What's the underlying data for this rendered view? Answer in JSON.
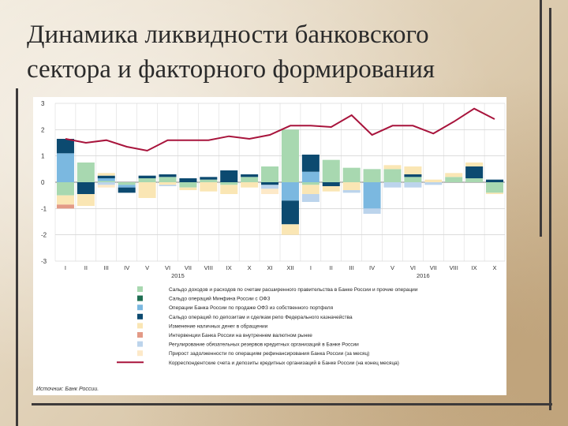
{
  "title_lines": [
    "Динамика ликвидности банковского",
    "сектора и факторного формирования"
  ],
  "colors": {
    "budget": "#a8d8b0",
    "minfin": "#1f6e52",
    "ofz_sale": "#7bb8e0",
    "treasury": "#0c4a70",
    "cash": "#fae6b4",
    "fx": "#e39a86",
    "reserves": "#bcd4ec",
    "refinancing": "#fde9c8",
    "correspondent": "#a8143c"
  },
  "chart_data": {
    "type": "bar",
    "subtype": "stacked-bar-with-line",
    "categories": [
      "I",
      "II",
      "III",
      "IV",
      "V",
      "VI",
      "VII",
      "VIII",
      "IX",
      "X",
      "XI",
      "XII",
      "I",
      "II",
      "III",
      "IV",
      "V",
      "VI",
      "VII",
      "VIII",
      "IX",
      "X"
    ],
    "year_labels": [
      {
        "label": "2015",
        "at": 5.5
      },
      {
        "label": "2016",
        "at": 17.5
      }
    ],
    "ylim": [
      -3,
      3
    ],
    "yticks": [
      -3,
      -2,
      -1,
      0,
      1,
      2,
      3
    ],
    "grid": true,
    "series": [
      {
        "name": "Сальдо доходов и расходов по счетам расширенного правительства в Банке России и прочие операции",
        "color_key": "budget",
        "values": [
          -0.5,
          0.75,
          0.05,
          -0.1,
          0.15,
          0.2,
          -0.2,
          0.1,
          -0.1,
          0.2,
          0.6,
          2.0,
          -0.1,
          0.85,
          0.55,
          0.5,
          0.5,
          0.2,
          0.0,
          0.2,
          0.15,
          -0.4
        ]
      },
      {
        "name": "Сальдо операций Минфина России с ОФЗ",
        "color_key": "minfin",
        "values": [
          0.0,
          0.0,
          0.0,
          0.0,
          0.0,
          0.0,
          0.0,
          0.0,
          0.0,
          0.0,
          0.0,
          0.0,
          0.0,
          0.0,
          0.0,
          0.0,
          0.0,
          0.0,
          0.0,
          0.0,
          0.0,
          0.0
        ]
      },
      {
        "name": "Операции Банка России по продаже ОФЗ из собственного портфеля",
        "color_key": "ofz_sale",
        "values": [
          1.1,
          0.0,
          0.1,
          -0.1,
          0.0,
          0.0,
          0.0,
          0.0,
          0.0,
          0.0,
          0.0,
          -0.7,
          0.4,
          0.0,
          0.0,
          -1.0,
          0.0,
          0.0,
          0.0,
          0.0,
          0.0,
          0.0
        ]
      },
      {
        "name": "Сальдо операций по депозитам и сделкам репо Федерального казначейства",
        "color_key": "treasury",
        "values": [
          0.55,
          -0.45,
          0.1,
          -0.2,
          0.1,
          0.1,
          0.15,
          0.1,
          0.45,
          0.1,
          -0.1,
          -0.9,
          0.65,
          -0.15,
          0.0,
          0.0,
          0.0,
          0.1,
          0.0,
          0.0,
          0.45,
          0.1
        ]
      },
      {
        "name": "Изменение наличных денег в обращении",
        "color_key": "cash",
        "values": [
          -0.35,
          -0.45,
          0.1,
          0.0,
          -0.6,
          -0.1,
          -0.1,
          -0.35,
          -0.35,
          -0.2,
          0.0,
          -0.4,
          -0.35,
          -0.2,
          -0.3,
          0.0,
          0.15,
          0.3,
          0.1,
          0.15,
          0.15,
          -0.05
        ]
      },
      {
        "name": "Интервенции Банка России на внутреннем валютном рынке",
        "color_key": "fx",
        "values": [
          -0.15,
          0.0,
          0.0,
          0.0,
          0.0,
          0.0,
          0.0,
          0.0,
          0.0,
          0.0,
          0.0,
          0.0,
          0.0,
          0.0,
          0.0,
          0.0,
          0.0,
          0.0,
          0.0,
          0.0,
          0.0,
          0.0
        ]
      },
      {
        "name": "Регулирование обязательных резервов кредитных организаций в Банке России",
        "color_key": "reserves",
        "values": [
          0.0,
          0.0,
          -0.1,
          0.0,
          0.0,
          -0.05,
          0.0,
          0.0,
          0.0,
          0.0,
          -0.15,
          0.0,
          -0.3,
          0.0,
          -0.1,
          -0.2,
          -0.2,
          -0.2,
          -0.1,
          0.0,
          0.0,
          0.0
        ]
      },
      {
        "name": "Прирост задолженности по операциям рефинансирования Банка России (за месяц)",
        "color_key": "refinancing",
        "values": [
          0.0,
          0.0,
          -0.1,
          0.0,
          0.0,
          0.0,
          0.0,
          0.0,
          0.0,
          0.0,
          -0.2,
          0.0,
          0.0,
          0.0,
          0.0,
          0.0,
          0.0,
          0.0,
          0.0,
          0.0,
          0.0,
          0.0
        ]
      }
    ],
    "line": {
      "name": "Корреспондентские счета и депозиты кредитных организаций в Банке России (на конец месяца)",
      "color_key": "correspondent",
      "values": [
        1.65,
        1.5,
        1.6,
        1.35,
        1.2,
        1.6,
        1.6,
        1.6,
        1.75,
        1.65,
        1.8,
        2.15,
        2.15,
        2.1,
        2.55,
        1.8,
        2.15,
        2.15,
        1.85,
        2.3,
        2.8,
        2.4
      ]
    },
    "source": "Источник: Банк России."
  }
}
